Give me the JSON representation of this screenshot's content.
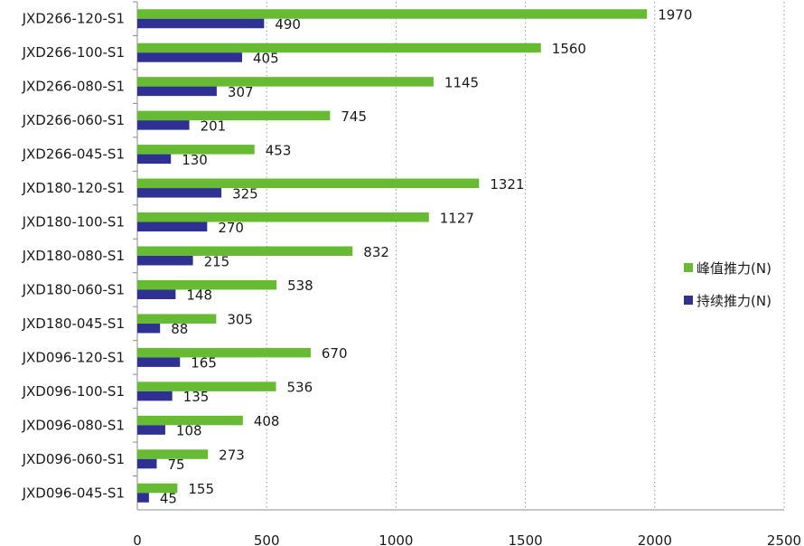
{
  "chart_data": {
    "type": "bar",
    "orientation": "horizontal",
    "categories": [
      "JXD266-120-S1",
      "JXD266-100-S1",
      "JXD266-080-S1",
      "JXD266-060-S1",
      "JXD266-045-S1",
      "JXD180-120-S1",
      "JXD180-100-S1",
      "JXD180-080-S1",
      "JXD180-060-S1",
      "JXD180-045-S1",
      "JXD096-120-S1",
      "JXD096-100-S1",
      "JXD096-080-S1",
      "JXD096-060-S1",
      "JXD096-045-S1"
    ],
    "series": [
      {
        "name": "峰值推力(N)",
        "color": "#66bb33",
        "values": [
          1970,
          1560,
          1145,
          745,
          453,
          1321,
          1127,
          832,
          538,
          305,
          670,
          536,
          408,
          273,
          155
        ]
      },
      {
        "name": "持续推力(N)",
        "color": "#2e3192",
        "values": [
          490,
          405,
          307,
          201,
          130,
          325,
          270,
          215,
          148,
          88,
          165,
          135,
          108,
          75,
          45
        ]
      }
    ],
    "xlim": [
      0,
      2500
    ],
    "xticks": [
      0,
      500,
      1000,
      1500,
      2000,
      2500
    ],
    "grid": "vertical-dotted",
    "legend_position": "right",
    "title": "",
    "xlabel": "",
    "ylabel": ""
  }
}
